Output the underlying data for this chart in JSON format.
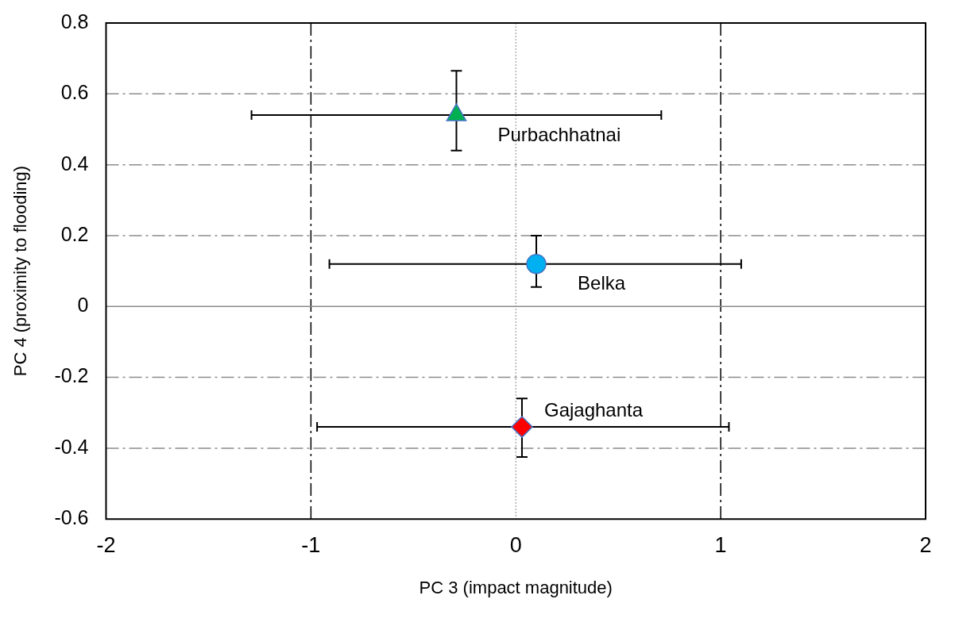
{
  "chart_data": {
    "type": "scatter",
    "xlabel": "PC 3 (impact magnitude)",
    "ylabel": "PC 4 (proximity to flooding)",
    "xlim": [
      -2,
      2
    ],
    "xticks": [
      -2,
      -1,
      0,
      1,
      2
    ],
    "ylim": [
      -0.6,
      0.8
    ],
    "yticks": [
      -0.6,
      -0.4,
      -0.2,
      0,
      0.2,
      0.4,
      0.6,
      0.8
    ],
    "grid": true,
    "legend": false,
    "ref_lines": [
      {
        "axis": "x",
        "value": 0,
        "color": "#8c8c8c",
        "line_style": "dotted"
      },
      {
        "axis": "y",
        "value": 0,
        "color": "#8c8c8c",
        "line_style": "solid"
      }
    ],
    "series": [
      {
        "name": "Purbachhatnai",
        "color": "#00b050",
        "marker": "triangle",
        "x": [
          -0.29
        ],
        "values": [
          0.54
        ],
        "xerrors": [
          [
            -1.29,
            0.71
          ]
        ],
        "errors": [
          [
            0.44,
            0.665
          ]
        ]
      },
      {
        "name": "Belka",
        "color": "#00b0f0",
        "marker": "circle",
        "x": [
          0.1
        ],
        "values": [
          0.12
        ],
        "xerrors": [
          [
            -0.91,
            1.1
          ]
        ],
        "errors": [
          [
            0.055,
            0.2
          ]
        ]
      },
      {
        "name": "Gajaghanta",
        "color": "#ff0000",
        "marker": "diamond",
        "x": [
          0.03
        ],
        "values": [
          -0.34
        ],
        "xerrors": [
          [
            -0.97,
            1.04
          ]
        ],
        "errors": [
          [
            -0.425,
            -0.26
          ]
        ]
      }
    ]
  }
}
